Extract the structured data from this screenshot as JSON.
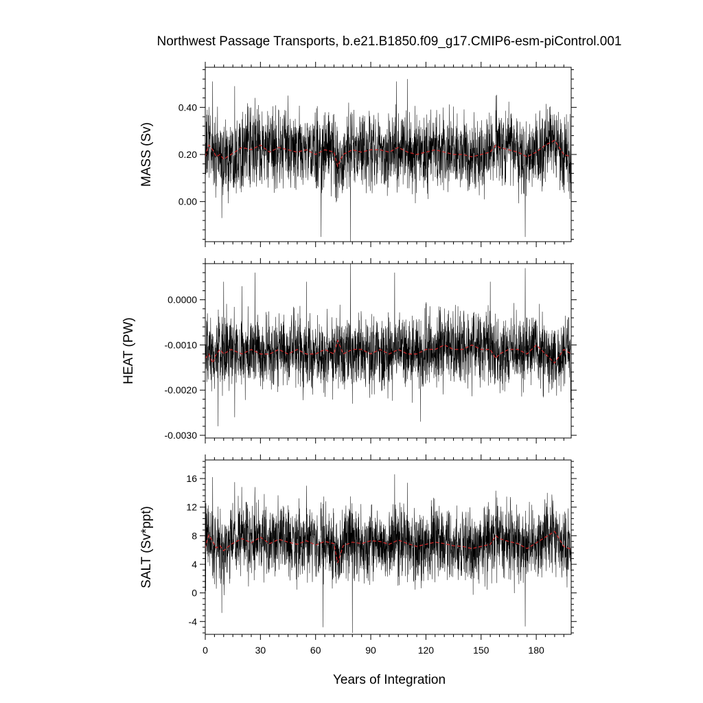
{
  "figure": {
    "title": "Northwest Passage Transports, b.e21.B1850.f09_g17.CMIP6-esm-piControl.001",
    "xlabel": "Years of Integration"
  },
  "chart_data": [
    {
      "type": "line",
      "title": "",
      "xlabel": "Years of Integration",
      "ylabel": "MASS (Sv)",
      "xlim": [
        0,
        199
      ],
      "ylim": [
        -0.17,
        0.57
      ],
      "xticks": [
        0,
        30,
        60,
        90,
        120,
        150,
        180
      ],
      "xtick_labels": [
        "0",
        "30",
        "60",
        "90",
        "120",
        "150",
        "180"
      ],
      "yticks": [
        0.0,
        0.2,
        0.4
      ],
      "ytick_labels": [
        "0.00",
        "0.20",
        "0.40"
      ],
      "grid": false,
      "series": [
        {
          "style": "monthly",
          "color": "#000000",
          "mean": 0.21,
          "amplitude": 0.09,
          "x": [
            0,
            3,
            4,
            9,
            16,
            27,
            45,
            63,
            72,
            78,
            79,
            104,
            110,
            158,
            174,
            199
          ],
          "values": [
            0.21,
            0.12,
            0.51,
            -0.07,
            0.49,
            0.44,
            0.45,
            -0.15,
            0.3,
            0.42,
            -0.17,
            0.51,
            0.52,
            0.45,
            -0.15,
            0.21
          ]
        },
        {
          "style": "annual",
          "color": "#d62728",
          "x": [
            0,
            1,
            2,
            4,
            6,
            8,
            10,
            14,
            20,
            25,
            30,
            35,
            40,
            45,
            50,
            55,
            60,
            65,
            70,
            72,
            75,
            80,
            85,
            90,
            95,
            100,
            105,
            110,
            115,
            120,
            125,
            130,
            135,
            140,
            145,
            150,
            155,
            158,
            160,
            165,
            170,
            175,
            180,
            185,
            190,
            195,
            199
          ],
          "values": [
            0.19,
            0.22,
            0.24,
            0.22,
            0.19,
            0.2,
            0.18,
            0.2,
            0.23,
            0.22,
            0.24,
            0.21,
            0.23,
            0.22,
            0.21,
            0.22,
            0.2,
            0.22,
            0.21,
            0.15,
            0.2,
            0.22,
            0.21,
            0.22,
            0.22,
            0.21,
            0.23,
            0.21,
            0.2,
            0.21,
            0.22,
            0.21,
            0.2,
            0.2,
            0.19,
            0.2,
            0.21,
            0.24,
            0.23,
            0.22,
            0.21,
            0.19,
            0.21,
            0.24,
            0.26,
            0.2,
            0.19
          ]
        }
      ]
    },
    {
      "type": "line",
      "title": "",
      "xlabel": "Years of Integration",
      "ylabel": "HEAT (PW)",
      "xlim": [
        0,
        199
      ],
      "ylim": [
        -0.00306,
        0.0008
      ],
      "xticks": [
        0,
        30,
        60,
        90,
        120,
        150,
        180
      ],
      "xtick_labels": [
        "0",
        "30",
        "60",
        "90",
        "120",
        "150",
        "180"
      ],
      "yticks": [
        0.0,
        -0.001,
        -0.002,
        -0.003
      ],
      "ytick_labels": [
        "0.0000",
        "-0.0010",
        "-0.0020",
        "-0.0030"
      ],
      "grid": false,
      "series": [
        {
          "style": "monthly",
          "color": "#000000",
          "mean": -0.00113,
          "amplitude": 0.00045,
          "x": [
            0,
            7,
            10,
            16,
            20,
            27,
            55,
            79,
            80,
            103,
            117,
            155,
            174,
            199
          ],
          "values": [
            -0.0011,
            -0.0028,
            0.0004,
            -0.0026,
            0.0003,
            0.0006,
            0.0004,
            0.0008,
            -0.0023,
            0.0006,
            -0.0027,
            0.0004,
            0.0007,
            -0.0011
          ]
        },
        {
          "style": "annual",
          "color": "#d62728",
          "x": [
            0,
            2,
            4,
            6,
            8,
            10,
            14,
            20,
            25,
            30,
            35,
            40,
            45,
            50,
            55,
            60,
            65,
            70,
            72,
            75,
            80,
            85,
            90,
            95,
            100,
            105,
            110,
            115,
            120,
            125,
            130,
            135,
            140,
            145,
            150,
            155,
            158,
            160,
            165,
            170,
            175,
            180,
            185,
            190,
            195,
            199
          ],
          "values": [
            -0.0013,
            -0.0012,
            -0.0014,
            -0.0012,
            -0.0011,
            -0.0012,
            -0.0011,
            -0.0012,
            -0.0011,
            -0.0012,
            -0.0012,
            -0.0011,
            -0.0012,
            -0.0011,
            -0.0012,
            -0.0012,
            -0.0011,
            -0.0012,
            -0.0009,
            -0.0012,
            -0.0011,
            -0.0011,
            -0.0012,
            -0.0011,
            -0.0012,
            -0.0011,
            -0.0012,
            -0.0012,
            -0.0011,
            -0.0011,
            -0.001,
            -0.0011,
            -0.0011,
            -0.001,
            -0.0011,
            -0.0011,
            -0.0013,
            -0.0012,
            -0.0011,
            -0.0011,
            -0.0012,
            -0.001,
            -0.0012,
            -0.0014,
            -0.0011,
            -0.0012
          ]
        }
      ]
    },
    {
      "type": "line",
      "title": "",
      "xlabel": "Years of Integration",
      "ylabel": "SALT (Sv*ppt)",
      "xlim": [
        0,
        199
      ],
      "ylim": [
        -5.8,
        18.6
      ],
      "xticks": [
        0,
        30,
        60,
        90,
        120,
        150,
        180
      ],
      "xtick_labels": [
        "0",
        "30",
        "60",
        "90",
        "120",
        "150",
        "180"
      ],
      "yticks": [
        -4,
        0,
        4,
        8,
        12,
        16
      ],
      "ytick_labels": [
        "-4",
        "0",
        "4",
        "8",
        "12",
        "16"
      ],
      "grid": false,
      "series": [
        {
          "style": "monthly",
          "color": "#000000",
          "mean": 6.8,
          "amplitude": 2.8,
          "x": [
            0,
            4,
            9,
            16,
            27,
            55,
            64,
            79,
            80,
            103,
            110,
            158,
            174,
            186,
            199
          ],
          "values": [
            6.8,
            16.2,
            -2.8,
            15.5,
            14.8,
            15.0,
            -4.8,
            13.5,
            -5.6,
            16.6,
            15.4,
            14.3,
            -4.7,
            14.0,
            6.5
          ]
        },
        {
          "style": "annual",
          "color": "#d62728",
          "x": [
            0,
            1,
            2,
            4,
            6,
            8,
            10,
            14,
            20,
            25,
            30,
            35,
            40,
            45,
            50,
            55,
            60,
            65,
            70,
            72,
            75,
            80,
            85,
            90,
            95,
            100,
            105,
            110,
            115,
            120,
            125,
            130,
            135,
            140,
            145,
            150,
            155,
            158,
            160,
            165,
            170,
            175,
            180,
            185,
            190,
            195,
            199
          ],
          "values": [
            6.2,
            7.4,
            8.1,
            7.2,
            6.3,
            6.6,
            5.9,
            6.8,
            7.6,
            7.0,
            7.8,
            6.9,
            7.5,
            7.1,
            6.8,
            7.3,
            6.7,
            7.2,
            6.9,
            4.2,
            6.6,
            7.1,
            6.9,
            7.3,
            7.2,
            6.8,
            7.4,
            6.9,
            6.5,
            6.8,
            7.1,
            6.9,
            6.6,
            6.5,
            6.2,
            6.5,
            6.8,
            8.0,
            7.6,
            7.2,
            6.9,
            6.2,
            7.0,
            7.8,
            8.6,
            6.5,
            6.1
          ]
        }
      ]
    }
  ]
}
